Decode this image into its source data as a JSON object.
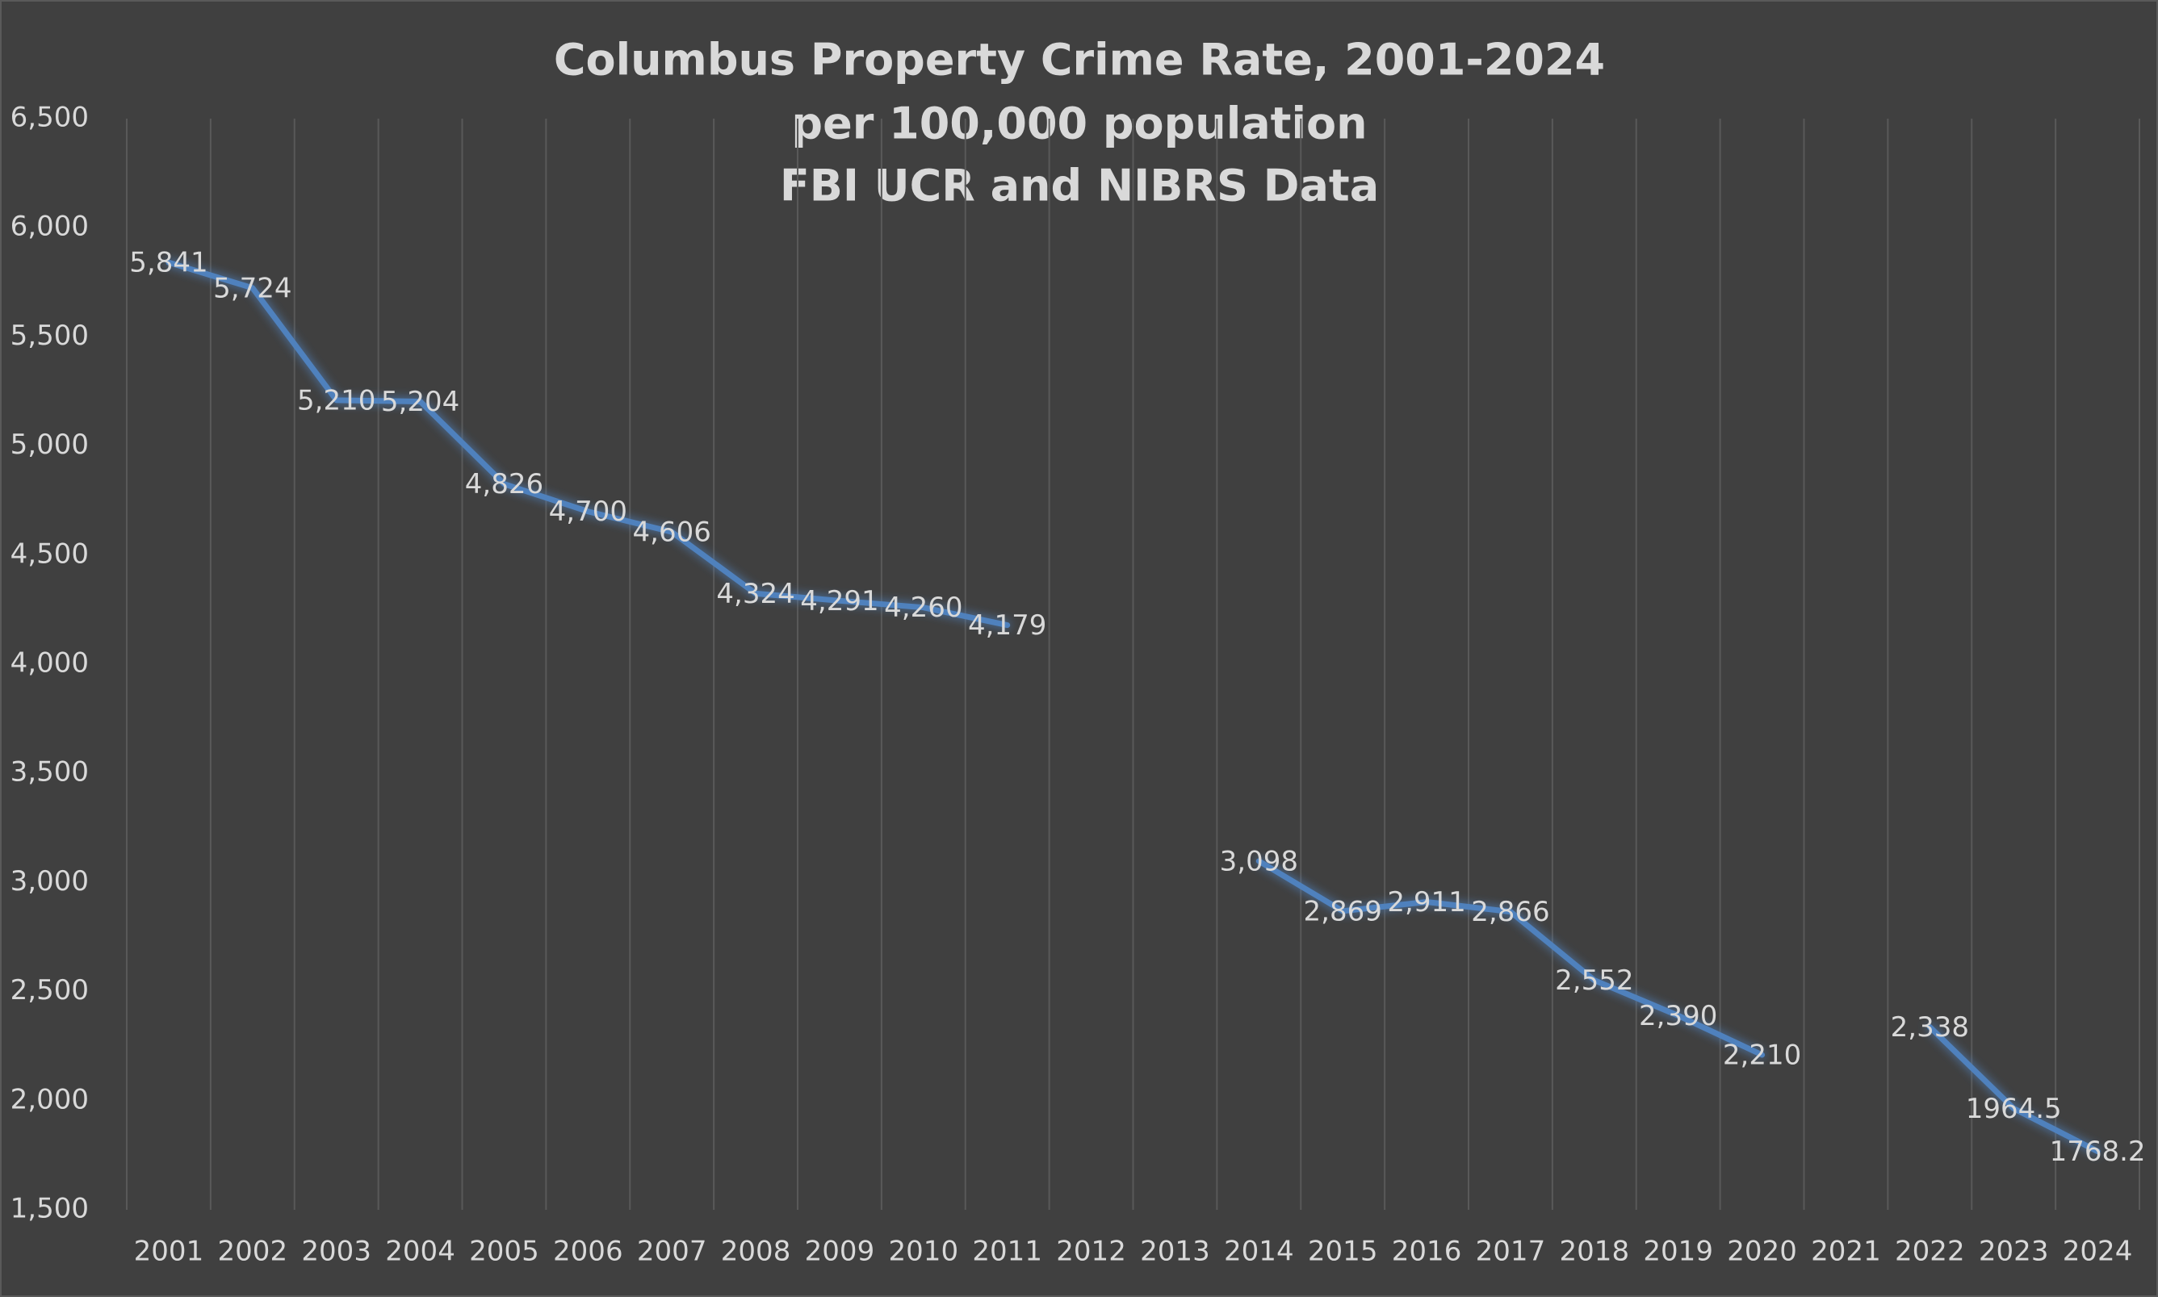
{
  "chart_data": {
    "type": "line",
    "title": "Columbus Property Crime Rate, 2001-2024",
    "subtitle": [
      "per 100,000 population",
      "FBI UCR and NIBRS Data"
    ],
    "categories": [
      "2001",
      "2002",
      "2003",
      "2004",
      "2005",
      "2006",
      "2007",
      "2008",
      "2009",
      "2010",
      "2011",
      "2012",
      "2013",
      "2014",
      "2015",
      "2016",
      "2017",
      "2018",
      "2019",
      "2020",
      "2021",
      "2022",
      "2023",
      "2024"
    ],
    "series": [
      {
        "name": "Property crime rate",
        "color": "#4f81bd",
        "values": [
          5841,
          5724,
          5210,
          5204,
          4826,
          4700,
          4606,
          4324,
          4291,
          4260,
          4179,
          null,
          null,
          3098,
          2869,
          2911,
          2866,
          2552,
          2390,
          2210,
          null,
          2338,
          1964.5,
          1768.2
        ],
        "value_labels": [
          "5,841",
          "5,724",
          "5,210",
          "5,204",
          "4,826",
          "4,700",
          "4,606",
          "4,324",
          "4,291",
          "4,260",
          "4,179",
          null,
          null,
          "3,098",
          "2,869",
          "2,911",
          "2,866",
          "2,552",
          "2,390",
          "2,210",
          null,
          "2,338",
          "1964.5",
          "1768.2"
        ]
      }
    ],
    "ylim": [
      1500,
      6500
    ],
    "yticks": [
      {
        "value": 1500,
        "label": "1,500"
      },
      {
        "value": 2000,
        "label": "2,000"
      },
      {
        "value": 2500,
        "label": "2,500"
      },
      {
        "value": 3000,
        "label": "3,000"
      },
      {
        "value": 3500,
        "label": "3,500"
      },
      {
        "value": 4000,
        "label": "4,000"
      },
      {
        "value": 4500,
        "label": "4,500"
      },
      {
        "value": 5000,
        "label": "5,000"
      },
      {
        "value": 5500,
        "label": "5,500"
      },
      {
        "value": 6000,
        "label": "6,000"
      },
      {
        "value": 6500,
        "label": "6,500"
      }
    ],
    "grid": true
  }
}
